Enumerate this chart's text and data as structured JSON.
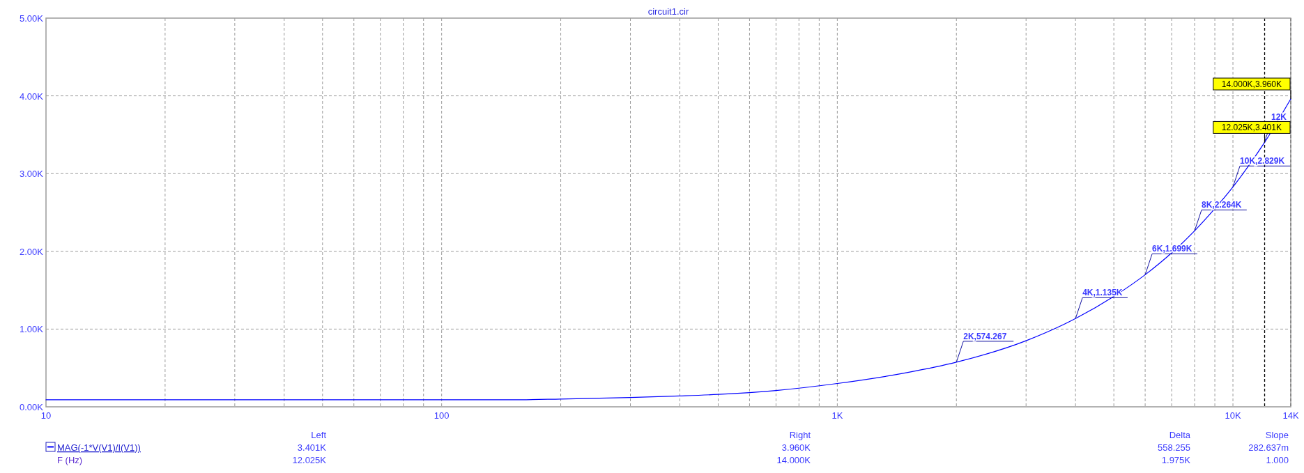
{
  "chart_data": {
    "type": "line",
    "title": "circuit1.cir",
    "xlabel": "F (Hz)",
    "log": "x",
    "grid": true,
    "legend": "bottom left",
    "marker": "none",
    "line_style": "solid",
    "x": [
      10,
      20,
      50,
      100,
      150,
      200,
      300,
      400,
      500,
      700,
      1000,
      1500,
      2000,
      3000,
      4000,
      5000,
      6000,
      7000,
      8000,
      9000,
      10000,
      12025,
      14000
    ],
    "series": [
      {
        "name": "MAG(-1*V(V1)/I(V1))",
        "color": "#0000ff",
        "values": [
          90,
          90,
          90,
          90,
          90,
          100,
          120,
          140,
          160,
          210,
          300,
          440,
          574.267,
          850,
          1135,
          1420,
          1699,
          1980,
          2264,
          2550,
          2829,
          3401,
          3960
        ]
      }
    ],
    "xlim": [
      10,
      14000
    ],
    "ylim": [
      0,
      5000
    ],
    "xticks": [
      10,
      {
        "value": 20,
        "label": null
      },
      {
        "value": 30,
        "label": null
      },
      {
        "value": 40,
        "label": null
      },
      {
        "value": 50,
        "label": null
      },
      {
        "value": 60,
        "label": null
      },
      {
        "value": 70,
        "label": null
      },
      {
        "value": 80,
        "label": null
      },
      {
        "value": 90,
        "label": null
      },
      100,
      {
        "value": 200,
        "label": null
      },
      {
        "value": 300,
        "label": null
      },
      {
        "value": 400,
        "label": null
      },
      {
        "value": 500,
        "label": null
      },
      {
        "value": 600,
        "label": null
      },
      {
        "value": 700,
        "label": null
      },
      {
        "value": 800,
        "label": null
      },
      {
        "value": 900,
        "label": null
      },
      {
        "value": 1000,
        "label": "1K"
      },
      {
        "value": 2000,
        "label": null
      },
      {
        "value": 3000,
        "label": null
      },
      {
        "value": 4000,
        "label": null
      },
      {
        "value": 5000,
        "label": null
      },
      {
        "value": 6000,
        "label": null
      },
      {
        "value": 7000,
        "label": null
      },
      {
        "value": 8000,
        "label": null
      },
      {
        "value": 9000,
        "label": null
      },
      {
        "value": 10000,
        "label": "10K"
      },
      {
        "value": 14000,
        "label": "14K"
      }
    ],
    "yticks": [
      {
        "value": 0,
        "label": "0.00K"
      },
      {
        "value": 1000,
        "label": "1.00K"
      },
      {
        "value": 2000,
        "label": "2.00K"
      },
      {
        "value": 3000,
        "label": "3.00K"
      },
      {
        "value": 4000,
        "label": "4.00K"
      },
      {
        "value": 5000,
        "label": "5.00K"
      }
    ],
    "ref_lines": [
      {
        "axis": "x",
        "value": 12025,
        "line_style": "dashed",
        "color": "#000000"
      },
      {
        "axis": "x",
        "value": 14000,
        "line_style": "dashed",
        "color": "#000000"
      }
    ],
    "annotations": [
      {
        "text": "2K,574.267",
        "x": 2000,
        "y": 574.267
      },
      {
        "text": "4K,1.135K",
        "x": 4000,
        "y": 1135
      },
      {
        "text": "6K,1.699K",
        "x": 6000,
        "y": 1699
      },
      {
        "text": "8K,2.264K",
        "x": 8000,
        "y": 2264
      },
      {
        "text": "10K,2.829K",
        "x": 10000,
        "y": 2829
      },
      {
        "text": "12K",
        "x": 12000,
        "y": 3395
      },
      {
        "text": "12.025K,3.401K",
        "x": 12025,
        "y": 3401
      },
      {
        "text": "14.000K,3.960K",
        "x": 14000,
        "y": 3960
      },
      "Left",
      "3.401K",
      "12.025K",
      "Right",
      "3.960K",
      "14.000K",
      "Delta",
      "558.255",
      "1.975K",
      "Slope",
      "282.637m",
      "1.000"
    ]
  }
}
